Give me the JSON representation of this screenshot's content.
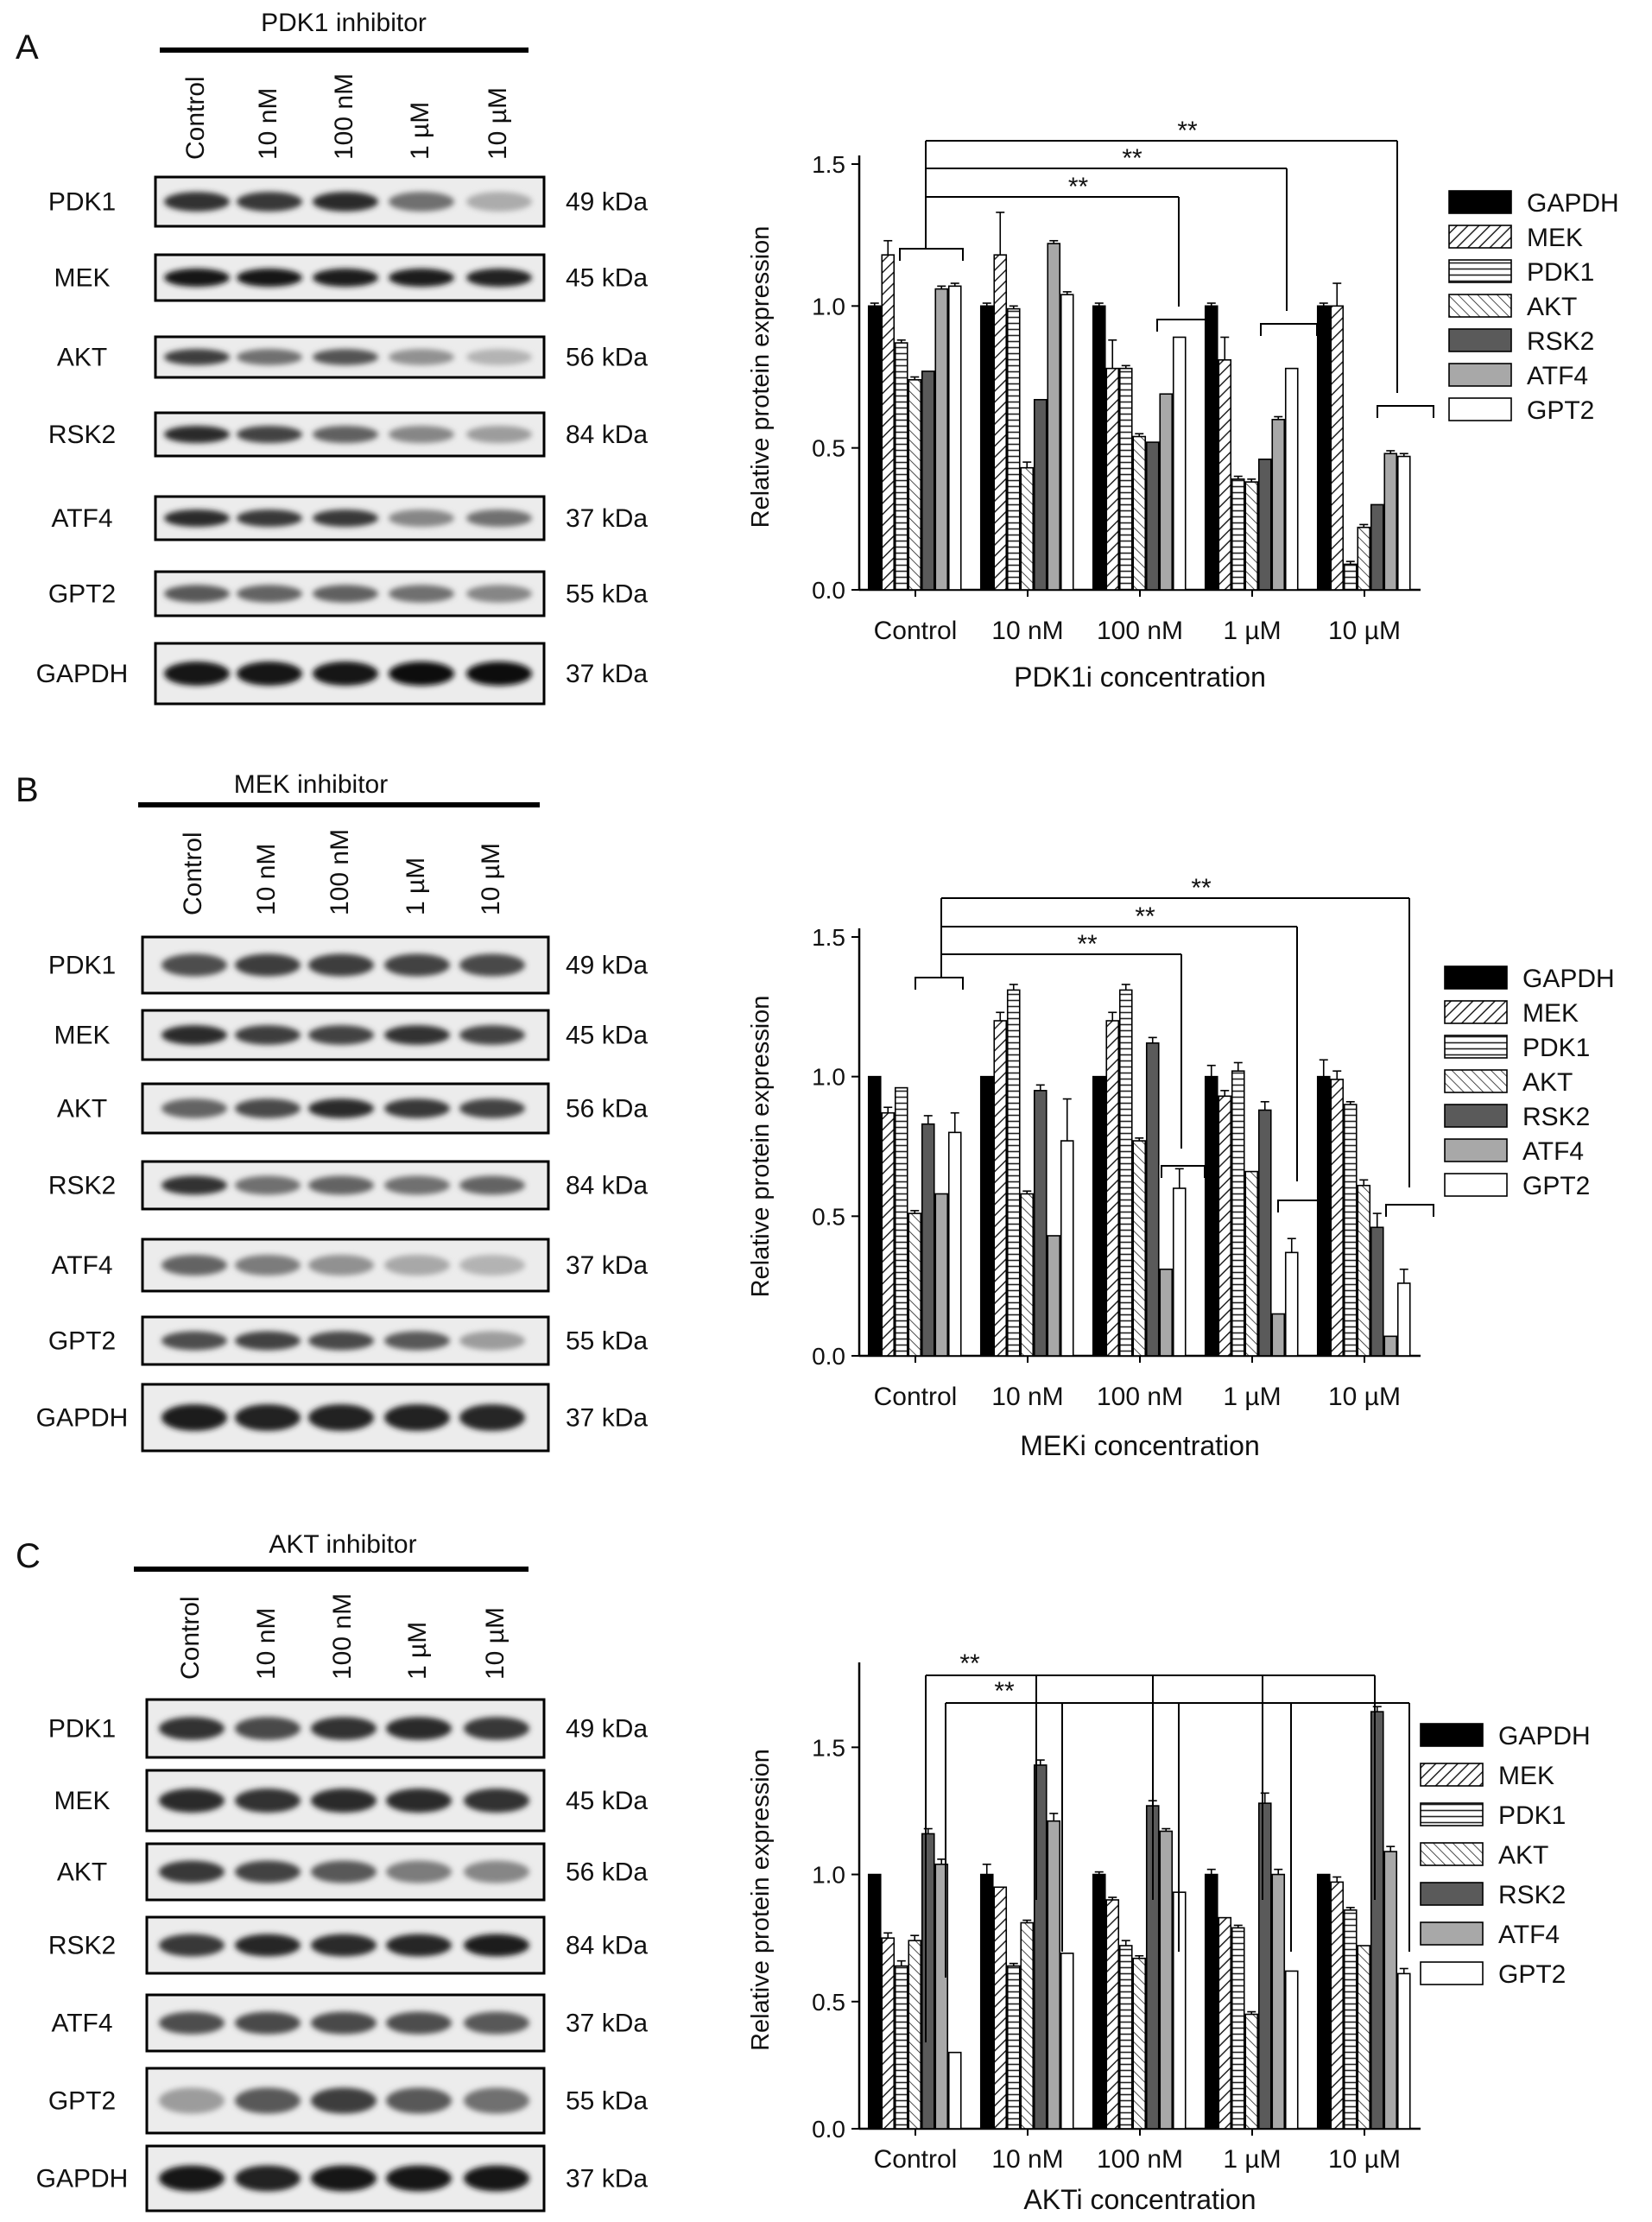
{
  "legend": [
    "GAPDH",
    "MEK",
    "PDK1",
    "AKT",
    "RSK2",
    "ATF4",
    "GPT2"
  ],
  "lanes": [
    "Control",
    "10 nM",
    "100 nM",
    "1 µM",
    "10 µM"
  ],
  "significance_label": "**",
  "panels": [
    {
      "letter": "A",
      "inhibitor_title": "PDK1 inhibitor",
      "blot_rows": [
        {
          "label": "PDK1",
          "kda": "49 kDa",
          "intensities": [
            0.82,
            0.8,
            0.85,
            0.55,
            0.28
          ]
        },
        {
          "label": "MEK",
          "kda": "45 kDa",
          "intensities": [
            0.95,
            0.95,
            0.92,
            0.92,
            0.9
          ]
        },
        {
          "label": "AKT",
          "kda": "56 kDa",
          "intensities": [
            0.78,
            0.55,
            0.68,
            0.4,
            0.25
          ]
        },
        {
          "label": "RSK2",
          "kda": "84 kDa",
          "intensities": [
            0.85,
            0.75,
            0.62,
            0.45,
            0.35
          ]
        },
        {
          "label": "ATF4",
          "kda": "37 kDa",
          "intensities": [
            0.85,
            0.8,
            0.8,
            0.45,
            0.55
          ]
        },
        {
          "label": "GPT2",
          "kda": "55 kDa",
          "intensities": [
            0.65,
            0.6,
            0.62,
            0.55,
            0.45
          ]
        },
        {
          "label": "GAPDH",
          "kda": "37 kDa",
          "intensities": [
            0.95,
            0.95,
            0.95,
            0.98,
            0.98
          ]
        }
      ]
    },
    {
      "letter": "B",
      "inhibitor_title": "MEK inhibitor",
      "blot_rows": [
        {
          "label": "PDK1",
          "kda": "49 kDa",
          "intensities": [
            0.7,
            0.78,
            0.78,
            0.75,
            0.72
          ]
        },
        {
          "label": "MEK",
          "kda": "45 kDa",
          "intensities": [
            0.85,
            0.78,
            0.75,
            0.82,
            0.75
          ]
        },
        {
          "label": "AKT",
          "kda": "56 kDa",
          "intensities": [
            0.6,
            0.72,
            0.85,
            0.8,
            0.75
          ]
        },
        {
          "label": "RSK2",
          "kda": "84 kDa",
          "intensities": [
            0.82,
            0.55,
            0.6,
            0.55,
            0.6
          ]
        },
        {
          "label": "ATF4",
          "kda": "37 kDa",
          "intensities": [
            0.6,
            0.5,
            0.4,
            0.3,
            0.25
          ]
        },
        {
          "label": "GPT2",
          "kda": "55 kDa",
          "intensities": [
            0.7,
            0.75,
            0.72,
            0.65,
            0.35
          ]
        },
        {
          "label": "GAPDH",
          "kda": "37 kDa",
          "intensities": [
            0.92,
            0.9,
            0.9,
            0.9,
            0.88
          ]
        }
      ]
    },
    {
      "letter": "C",
      "inhibitor_title": "AKT inhibitor",
      "blot_rows": [
        {
          "label": "PDK1",
          "kda": "49 kDa",
          "intensities": [
            0.82,
            0.72,
            0.82,
            0.85,
            0.8
          ]
        },
        {
          "label": "MEK",
          "kda": "45 kDa",
          "intensities": [
            0.85,
            0.82,
            0.85,
            0.85,
            0.82
          ]
        },
        {
          "label": "AKT",
          "kda": "56 kDa",
          "intensities": [
            0.8,
            0.75,
            0.65,
            0.5,
            0.45
          ]
        },
        {
          "label": "RSK2",
          "kda": "84 kDa",
          "intensities": [
            0.8,
            0.88,
            0.85,
            0.88,
            0.92
          ]
        },
        {
          "label": "ATF4",
          "kda": "37 kDa",
          "intensities": [
            0.7,
            0.72,
            0.72,
            0.7,
            0.65
          ]
        },
        {
          "label": "GPT2",
          "kda": "55 kDa",
          "intensities": [
            0.35,
            0.65,
            0.78,
            0.65,
            0.55
          ]
        },
        {
          "label": "GAPDH",
          "kda": "37 kDa",
          "intensities": [
            0.95,
            0.9,
            0.95,
            0.95,
            0.95
          ]
        }
      ]
    }
  ],
  "chart_data": [
    {
      "type": "bar",
      "xlabel": "PDK1i concentration",
      "ylabel": "Relative protein expression",
      "categories": [
        "Control",
        "10 nM",
        "100 nM",
        "1 µM",
        "10 µM"
      ],
      "ylim": [
        0,
        1.5
      ],
      "yticks": [
        "0.0",
        "0.5",
        "1.0",
        "1.5"
      ],
      "legend_position": "right",
      "series": [
        {
          "name": "GAPDH",
          "values": [
            1.0,
            1.0,
            1.0,
            1.0,
            1.0
          ],
          "errors": [
            0.01,
            0.01,
            0.01,
            0.01,
            0.01
          ]
        },
        {
          "name": "MEK",
          "values": [
            1.18,
            1.18,
            0.78,
            0.81,
            1.0
          ],
          "errors": [
            0.05,
            0.15,
            0.1,
            0.08,
            0.08
          ]
        },
        {
          "name": "PDK1",
          "values": [
            0.87,
            0.99,
            0.78,
            0.39,
            0.09
          ],
          "errors": [
            0.01,
            0.01,
            0.01,
            0.01,
            0.01
          ]
        },
        {
          "name": "AKT",
          "values": [
            0.74,
            0.43,
            0.54,
            0.38,
            0.22
          ],
          "errors": [
            0.01,
            0.02,
            0.01,
            0.01,
            0.01
          ]
        },
        {
          "name": "RSK2",
          "values": [
            0.77,
            0.67,
            0.52,
            0.46,
            0.3
          ],
          "errors": [
            0.0,
            0.0,
            0.0,
            0.0,
            0.0
          ]
        },
        {
          "name": "ATF4",
          "values": [
            1.06,
            1.22,
            0.69,
            0.6,
            0.48
          ],
          "errors": [
            0.01,
            0.01,
            0.0,
            0.01,
            0.01
          ]
        },
        {
          "name": "GPT2",
          "values": [
            1.07,
            1.04,
            0.89,
            0.78,
            0.47
          ],
          "errors": [
            0.01,
            0.01,
            0.0,
            0.0,
            0.01
          ]
        }
      ]
    },
    {
      "type": "bar",
      "xlabel": "MEKi concentration",
      "ylabel": "Relative protein expression",
      "categories": [
        "Control",
        "10 nM",
        "100 nM",
        "1 µM",
        "10 µM"
      ],
      "ylim": [
        0,
        1.5
      ],
      "yticks": [
        "0.0",
        "0.5",
        "1.0",
        "1.5"
      ],
      "legend_position": "right",
      "series": [
        {
          "name": "GAPDH",
          "values": [
            1.0,
            1.0,
            1.0,
            1.0,
            1.0
          ],
          "errors": [
            0.0,
            0.0,
            0.0,
            0.04,
            0.06
          ]
        },
        {
          "name": "MEK",
          "values": [
            0.87,
            1.2,
            1.2,
            0.93,
            0.99
          ],
          "errors": [
            0.02,
            0.03,
            0.03,
            0.02,
            0.03
          ]
        },
        {
          "name": "PDK1",
          "values": [
            0.96,
            1.31,
            1.31,
            1.02,
            0.9
          ],
          "errors": [
            0.0,
            0.02,
            0.02,
            0.03,
            0.01
          ]
        },
        {
          "name": "AKT",
          "values": [
            0.51,
            0.58,
            0.77,
            0.66,
            0.61
          ],
          "errors": [
            0.01,
            0.01,
            0.01,
            0.0,
            0.02
          ]
        },
        {
          "name": "RSK2",
          "values": [
            0.83,
            0.95,
            1.12,
            0.88,
            0.46
          ],
          "errors": [
            0.03,
            0.02,
            0.02,
            0.03,
            0.05
          ]
        },
        {
          "name": "ATF4",
          "values": [
            0.58,
            0.43,
            0.31,
            0.15,
            0.07
          ],
          "errors": [
            0.0,
            0.0,
            0.0,
            0.0,
            0.0
          ]
        },
        {
          "name": "GPT2",
          "values": [
            0.8,
            0.77,
            0.6,
            0.37,
            0.26
          ],
          "errors": [
            0.07,
            0.15,
            0.07,
            0.05,
            0.05
          ]
        }
      ]
    },
    {
      "type": "bar",
      "xlabel": "AKTi concentration",
      "ylabel": "Relative protein expression",
      "categories": [
        "Control",
        "10 nM",
        "100 nM",
        "1 µM",
        "10 µM"
      ],
      "ylim": [
        0,
        1.8
      ],
      "yticks": [
        "0.0",
        "0.5",
        "1.0",
        "1.5"
      ],
      "legend_position": "right",
      "series": [
        {
          "name": "GAPDH",
          "values": [
            1.0,
            1.0,
            1.0,
            1.0,
            1.0
          ],
          "errors": [
            0.0,
            0.04,
            0.01,
            0.02,
            0.0
          ]
        },
        {
          "name": "MEK",
          "values": [
            0.75,
            0.95,
            0.9,
            0.83,
            0.97
          ],
          "errors": [
            0.02,
            0.0,
            0.01,
            0.0,
            0.02
          ]
        },
        {
          "name": "PDK1",
          "values": [
            0.64,
            0.64,
            0.72,
            0.79,
            0.86
          ],
          "errors": [
            0.02,
            0.01,
            0.02,
            0.01,
            0.01
          ]
        },
        {
          "name": "AKT",
          "values": [
            0.74,
            0.81,
            0.67,
            0.45,
            0.72
          ],
          "errors": [
            0.02,
            0.01,
            0.01,
            0.01,
            0.0
          ]
        },
        {
          "name": "RSK2",
          "values": [
            1.16,
            1.43,
            1.27,
            1.28,
            1.64
          ],
          "errors": [
            0.02,
            0.02,
            0.02,
            0.04,
            0.02
          ]
        },
        {
          "name": "ATF4",
          "values": [
            1.04,
            1.21,
            1.17,
            1.0,
            1.09
          ],
          "errors": [
            0.02,
            0.03,
            0.01,
            0.02,
            0.02
          ]
        },
        {
          "name": "GPT2",
          "values": [
            0.3,
            0.69,
            0.93,
            0.62,
            0.61
          ],
          "errors": [
            0.0,
            0.0,
            0.0,
            0.0,
            0.02
          ]
        }
      ]
    }
  ]
}
